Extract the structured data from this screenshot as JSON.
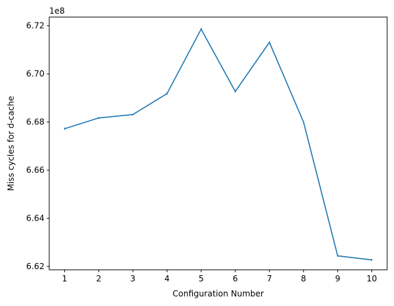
{
  "chart_data": {
    "type": "line",
    "xlabel": "Configuration Number",
    "ylabel": "Miss cycles for d-cache",
    "y_offset_label": "1e8",
    "x": [
      1,
      2,
      3,
      4,
      5,
      6,
      7,
      8,
      9,
      10
    ],
    "x_ticks": [
      1,
      2,
      3,
      4,
      5,
      6,
      7,
      8,
      9,
      10
    ],
    "xlim": [
      0.55,
      10.45
    ],
    "y_ticks": [
      6.62,
      6.64,
      6.66,
      6.68,
      6.7,
      6.72
    ],
    "y_tick_labels": [
      "6.62",
      "6.64",
      "6.66",
      "6.68",
      "6.70",
      "6.72"
    ],
    "ylim": [
      6.6186,
      6.7236
    ],
    "grid": false,
    "series": [
      {
        "color": "#1f77b4",
        "values": [
          6.6772,
          6.6817,
          6.6831,
          6.6918,
          6.7186,
          6.6927,
          6.7131,
          6.68,
          6.6244,
          6.6227
        ],
        "errors": [
          0.0005,
          0.0004,
          0.0004,
          0.0005,
          0.0005,
          0.0005,
          0.0005,
          0.0004,
          0.0004,
          0.0004
        ]
      }
    ]
  }
}
